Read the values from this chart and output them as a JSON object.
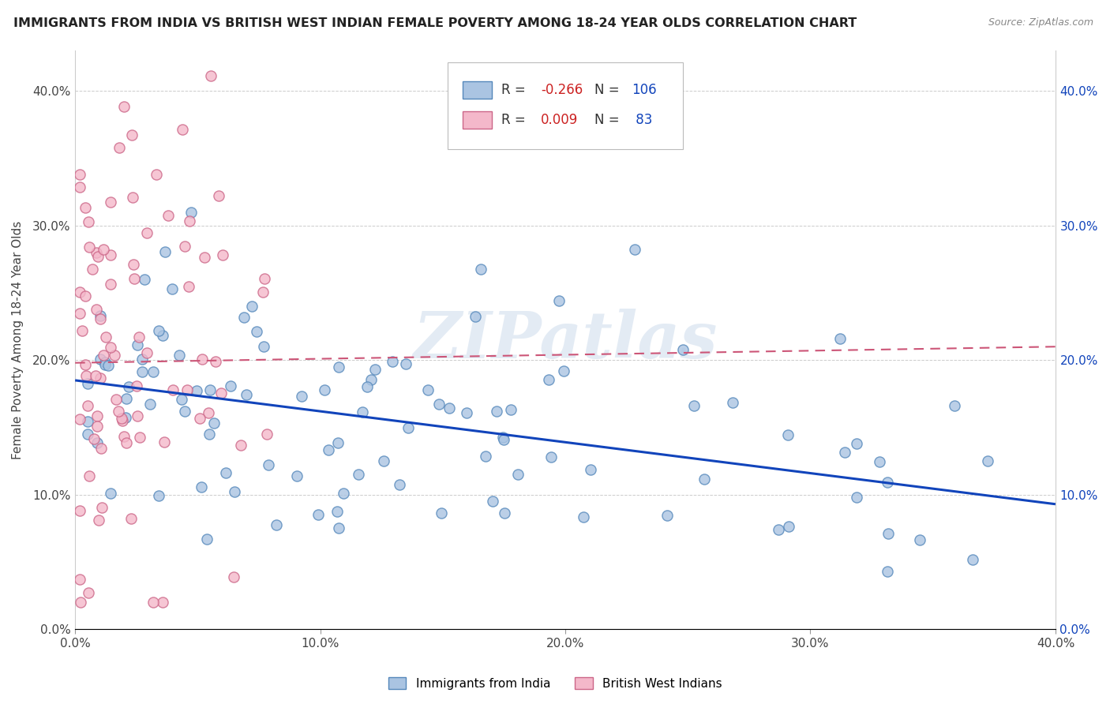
{
  "title": "IMMIGRANTS FROM INDIA VS BRITISH WEST INDIAN FEMALE POVERTY AMONG 18-24 YEAR OLDS CORRELATION CHART",
  "source": "Source: ZipAtlas.com",
  "ylabel": "Female Poverty Among 18-24 Year Olds",
  "xlim": [
    0.0,
    0.4
  ],
  "ylim": [
    0.0,
    0.43
  ],
  "ytick_labels": [
    "0.0%",
    "10.0%",
    "20.0%",
    "30.0%",
    "40.0%"
  ],
  "ytick_vals": [
    0.0,
    0.1,
    0.2,
    0.3,
    0.4
  ],
  "xtick_labels": [
    "0.0%",
    "10.0%",
    "20.0%",
    "30.0%",
    "40.0%"
  ],
  "xtick_vals": [
    0.0,
    0.1,
    0.2,
    0.3,
    0.4
  ],
  "india_color": "#aac4e2",
  "india_edge": "#5588bb",
  "bwi_color": "#f4b8ca",
  "bwi_edge": "#cc6688",
  "india_line_color": "#1144bb",
  "bwi_line_color": "#cc5577",
  "india_R": -0.266,
  "india_N": 106,
  "bwi_R": 0.009,
  "bwi_N": 83,
  "watermark": "ZIPatlas",
  "background_color": "#ffffff",
  "india_line_x0": 0.0,
  "india_line_y0": 0.185,
  "india_line_x1": 0.4,
  "india_line_y1": 0.093,
  "bwi_line_x0": 0.0,
  "bwi_line_y0": 0.198,
  "bwi_line_x1": 0.4,
  "bwi_line_y1": 0.21
}
